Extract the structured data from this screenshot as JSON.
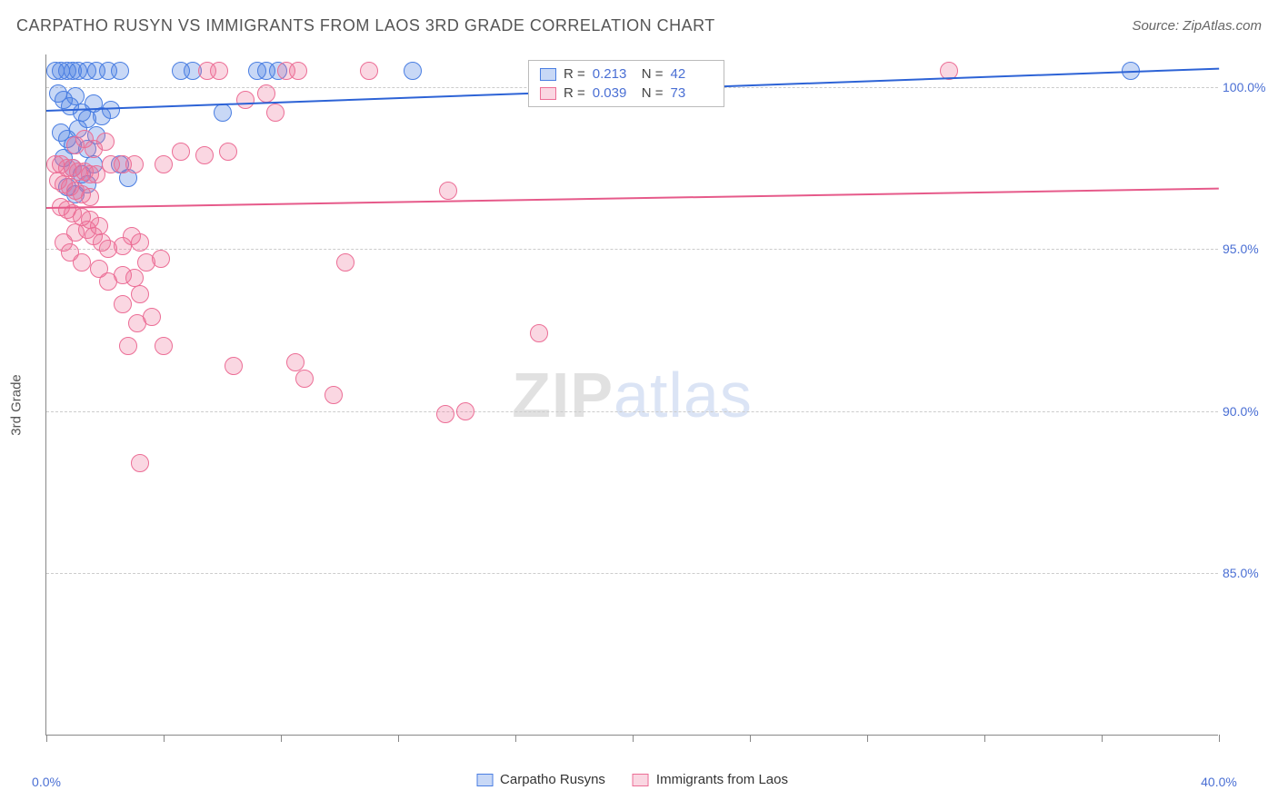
{
  "title": "CARPATHO RUSYN VS IMMIGRANTS FROM LAOS 3RD GRADE CORRELATION CHART",
  "source": "Source: ZipAtlas.com",
  "ylabel": "3rd Grade",
  "watermark": {
    "part1": "ZIP",
    "part2": "atlas"
  },
  "chart": {
    "type": "scatter",
    "background": "#ffffff",
    "grid_color": "#cccccc",
    "axis_color": "#888888",
    "tick_label_color": "#4a6fd4",
    "xlim": [
      0,
      40
    ],
    "ylim": [
      80,
      101
    ],
    "yticks": [
      85.0,
      90.0,
      95.0,
      100.0
    ],
    "ytick_labels": [
      "85.0%",
      "90.0%",
      "95.0%",
      "100.0%"
    ],
    "xticks": [
      0,
      20,
      40
    ],
    "xtick_labels": [
      "0.0%",
      "",
      "40.0%"
    ],
    "xtick_minor": [
      4,
      8,
      12,
      16,
      24,
      28,
      32,
      36
    ],
    "marker_radius": 10,
    "marker_stroke_width": 1.5,
    "series": [
      {
        "name": "Carpatho Rusyns",
        "fill": "rgba(74,126,226,0.30)",
        "stroke": "#4a7ee2",
        "R": "0.213",
        "N": "42",
        "trend": {
          "x1": 0,
          "y1": 99.3,
          "x2": 40,
          "y2": 100.6,
          "color": "#2d63d6",
          "width": 2
        },
        "points": [
          [
            0.3,
            100.5
          ],
          [
            0.5,
            100.5
          ],
          [
            0.7,
            100.5
          ],
          [
            0.9,
            100.5
          ],
          [
            1.1,
            100.5
          ],
          [
            1.4,
            100.5
          ],
          [
            1.7,
            100.5
          ],
          [
            2.1,
            100.5
          ],
          [
            2.5,
            100.5
          ],
          [
            0.4,
            99.8
          ],
          [
            0.6,
            99.6
          ],
          [
            0.8,
            99.4
          ],
          [
            1.0,
            99.7
          ],
          [
            1.2,
            99.2
          ],
          [
            1.4,
            99.0
          ],
          [
            1.6,
            99.5
          ],
          [
            1.9,
            99.1
          ],
          [
            2.2,
            99.3
          ],
          [
            0.5,
            98.6
          ],
          [
            0.7,
            98.4
          ],
          [
            0.9,
            98.2
          ],
          [
            1.1,
            98.7
          ],
          [
            1.4,
            98.1
          ],
          [
            1.7,
            98.5
          ],
          [
            0.6,
            97.8
          ],
          [
            0.9,
            97.5
          ],
          [
            1.2,
            97.3
          ],
          [
            1.6,
            97.6
          ],
          [
            0.7,
            96.9
          ],
          [
            1.0,
            96.7
          ],
          [
            1.4,
            97.0
          ],
          [
            2.5,
            97.6
          ],
          [
            2.8,
            97.2
          ],
          [
            4.6,
            100.5
          ],
          [
            5.0,
            100.5
          ],
          [
            6.0,
            99.2
          ],
          [
            7.2,
            100.5
          ],
          [
            7.5,
            100.5
          ],
          [
            7.9,
            100.5
          ],
          [
            12.5,
            100.5
          ],
          [
            22.5,
            100.5
          ],
          [
            37.0,
            100.5
          ]
        ]
      },
      {
        "name": "Immigrants from Laos",
        "fill": "rgba(236,110,150,0.28)",
        "stroke": "#ec6e96",
        "R": "0.039",
        "N": "73",
        "trend": {
          "x1": 0,
          "y1": 96.3,
          "x2": 40,
          "y2": 96.9,
          "color": "#e65a8a",
          "width": 2
        },
        "points": [
          [
            0.3,
            97.6
          ],
          [
            0.5,
            97.6
          ],
          [
            0.7,
            97.5
          ],
          [
            0.9,
            97.5
          ],
          [
            1.1,
            97.4
          ],
          [
            1.3,
            97.4
          ],
          [
            1.5,
            97.3
          ],
          [
            1.7,
            97.3
          ],
          [
            0.4,
            97.1
          ],
          [
            0.6,
            97.0
          ],
          [
            0.8,
            96.9
          ],
          [
            1.0,
            96.8
          ],
          [
            1.2,
            96.7
          ],
          [
            1.5,
            96.6
          ],
          [
            0.5,
            96.3
          ],
          [
            0.7,
            96.2
          ],
          [
            0.9,
            96.1
          ],
          [
            1.2,
            96.0
          ],
          [
            1.5,
            95.9
          ],
          [
            1.0,
            98.2
          ],
          [
            1.3,
            98.4
          ],
          [
            1.6,
            98.1
          ],
          [
            2.0,
            98.3
          ],
          [
            1.6,
            95.4
          ],
          [
            1.9,
            95.2
          ],
          [
            2.1,
            95.0
          ],
          [
            2.6,
            95.1
          ],
          [
            2.9,
            95.4
          ],
          [
            3.2,
            95.2
          ],
          [
            1.8,
            94.4
          ],
          [
            2.1,
            94.0
          ],
          [
            2.6,
            94.2
          ],
          [
            3.0,
            94.1
          ],
          [
            3.4,
            94.6
          ],
          [
            3.9,
            94.7
          ],
          [
            2.6,
            93.3
          ],
          [
            3.2,
            93.6
          ],
          [
            3.1,
            92.7
          ],
          [
            3.6,
            92.9
          ],
          [
            2.8,
            92.0
          ],
          [
            4.0,
            92.0
          ],
          [
            6.4,
            91.4
          ],
          [
            8.5,
            91.5
          ],
          [
            8.8,
            91.0
          ],
          [
            10.2,
            94.6
          ],
          [
            9.8,
            90.5
          ],
          [
            13.7,
            96.8
          ],
          [
            13.6,
            89.9
          ],
          [
            14.3,
            90.0
          ],
          [
            3.2,
            88.4
          ],
          [
            4.6,
            98.0
          ],
          [
            5.4,
            97.9
          ],
          [
            6.2,
            98.0
          ],
          [
            6.8,
            99.6
          ],
          [
            7.5,
            99.8
          ],
          [
            7.8,
            99.2
          ],
          [
            8.2,
            100.5
          ],
          [
            8.6,
            100.5
          ],
          [
            11.0,
            100.5
          ],
          [
            5.5,
            100.5
          ],
          [
            5.9,
            100.5
          ],
          [
            4.0,
            97.6
          ],
          [
            16.8,
            92.4
          ],
          [
            2.2,
            97.6
          ],
          [
            2.6,
            97.6
          ],
          [
            3.0,
            97.6
          ],
          [
            30.8,
            100.5
          ],
          [
            1.0,
            95.5
          ],
          [
            1.4,
            95.6
          ],
          [
            1.8,
            95.7
          ],
          [
            0.6,
            95.2
          ],
          [
            0.8,
            94.9
          ],
          [
            1.2,
            94.6
          ]
        ]
      }
    ]
  },
  "stats_legend": {
    "R_label": "R =",
    "N_label": "N ="
  },
  "bottom_legend_series": [
    "Carpatho Rusyns",
    "Immigrants from Laos"
  ]
}
